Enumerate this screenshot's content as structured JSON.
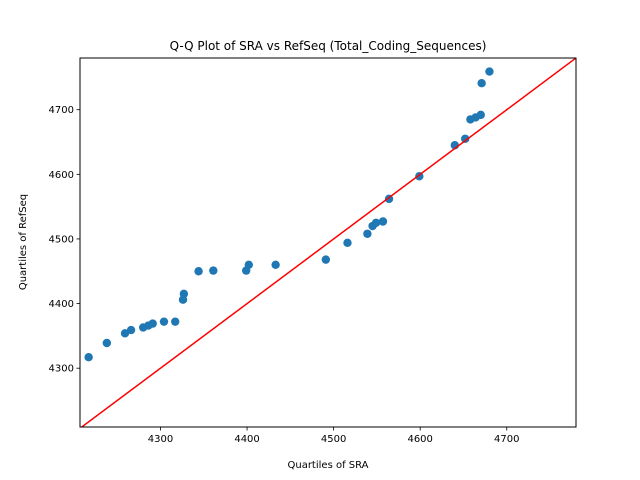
{
  "chart_data": {
    "type": "scatter",
    "title": "Q-Q Plot of SRA vs RefSeq (Total_Coding_Sequences)",
    "xlabel": "Quartiles of SRA",
    "ylabel": "Quartiles of RefSeq",
    "xlim": [
      4207,
      4780
    ],
    "ylim": [
      4209,
      4780
    ],
    "xticks": [
      4300,
      4400,
      4500,
      4600,
      4700
    ],
    "yticks": [
      4300,
      4400,
      4500,
      4600,
      4700
    ],
    "grid": false,
    "series": [
      {
        "marker_color": "#1f77b4",
        "points": [
          [
            4217,
            4317
          ],
          [
            4238,
            4339
          ],
          [
            4259,
            4354
          ],
          [
            4266,
            4359
          ],
          [
            4280,
            4363
          ],
          [
            4286,
            4366
          ],
          [
            4291,
            4369
          ],
          [
            4304,
            4372
          ],
          [
            4317,
            4372
          ],
          [
            4326,
            4406
          ],
          [
            4327,
            4415
          ],
          [
            4344,
            4450
          ],
          [
            4361,
            4451
          ],
          [
            4399,
            4451
          ],
          [
            4402,
            4460
          ],
          [
            4433,
            4460
          ],
          [
            4491,
            4468
          ],
          [
            4516,
            4494
          ],
          [
            4539,
            4508
          ],
          [
            4545,
            4520
          ],
          [
            4549,
            4525
          ],
          [
            4557,
            4527
          ],
          [
            4564,
            4562
          ],
          [
            4599,
            4597
          ],
          [
            4640,
            4645
          ],
          [
            4652,
            4655
          ],
          [
            4658,
            4685
          ],
          [
            4664,
            4688
          ],
          [
            4670,
            4692
          ],
          [
            4671,
            4741
          ],
          [
            4680,
            4759
          ]
        ]
      }
    ],
    "reference_line": {
      "color": "#ff0000",
      "from": [
        4207,
        4207
      ],
      "to": [
        4780,
        4780
      ]
    }
  }
}
